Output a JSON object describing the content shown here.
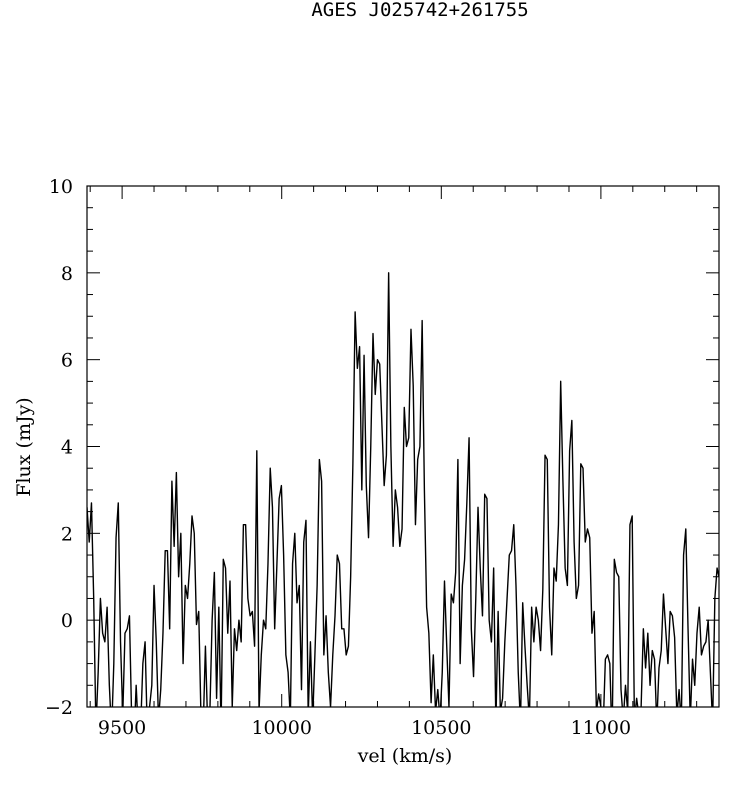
{
  "chart_data": {
    "type": "line",
    "title": "AGES J025742+261755",
    "xlabel": "vel (km/s)",
    "ylabel": "Flux (mJy)",
    "xlim": [
      9390,
      11370
    ],
    "ylim": [
      -2,
      10
    ],
    "x_ticks": [
      9500,
      10000,
      10500,
      11000
    ],
    "y_ticks": [
      -2,
      0,
      2,
      4,
      6,
      8,
      10
    ],
    "grid": false,
    "series": [
      {
        "values": [
          [
            9390,
            2.6
          ],
          [
            9397,
            1.8
          ],
          [
            9404,
            2.7
          ],
          [
            9411,
            0.5
          ],
          [
            9418,
            -2.5
          ],
          [
            9425,
            -1.2
          ],
          [
            9432,
            0.5
          ],
          [
            9439,
            -0.3
          ],
          [
            9446,
            -0.5
          ],
          [
            9453,
            0.3
          ],
          [
            9460,
            -1.5
          ],
          [
            9467,
            -2.6
          ],
          [
            9474,
            -1.0
          ],
          [
            9481,
            1.9
          ],
          [
            9488,
            2.7
          ],
          [
            9495,
            -0.5
          ],
          [
            9502,
            -2.2
          ],
          [
            9509,
            -0.3
          ],
          [
            9516,
            -0.2
          ],
          [
            9523,
            0.1
          ],
          [
            9530,
            -2.3
          ],
          [
            9537,
            -2.8
          ],
          [
            9544,
            -1.5
          ],
          [
            9551,
            -2.6
          ],
          [
            9558,
            -2.5
          ],
          [
            9565,
            -1.0
          ],
          [
            9572,
            -0.5
          ],
          [
            9579,
            -2.6
          ],
          [
            9586,
            -2.0
          ],
          [
            9593,
            -1.5
          ],
          [
            9600,
            0.8
          ],
          [
            9607,
            -0.5
          ],
          [
            9614,
            -2.3
          ],
          [
            9621,
            -1.6
          ],
          [
            9628,
            -0.3
          ],
          [
            9635,
            1.6
          ],
          [
            9642,
            1.6
          ],
          [
            9649,
            -0.2
          ],
          [
            9656,
            3.2
          ],
          [
            9663,
            1.7
          ],
          [
            9670,
            3.4
          ],
          [
            9677,
            1.0
          ],
          [
            9684,
            2.0
          ],
          [
            9691,
            -1.0
          ],
          [
            9698,
            0.8
          ],
          [
            9705,
            0.5
          ],
          [
            9712,
            1.3
          ],
          [
            9719,
            2.4
          ],
          [
            9726,
            2.0
          ],
          [
            9733,
            -0.1
          ],
          [
            9740,
            0.2
          ],
          [
            9747,
            -2.2
          ],
          [
            9754,
            -2.5
          ],
          [
            9761,
            -0.6
          ],
          [
            9768,
            -2.4
          ],
          [
            9775,
            -2.1
          ],
          [
            9782,
            0.0
          ],
          [
            9789,
            1.1
          ],
          [
            9796,
            -1.8
          ],
          [
            9803,
            0.3
          ],
          [
            9810,
            -2.5
          ],
          [
            9817,
            1.4
          ],
          [
            9824,
            1.2
          ],
          [
            9831,
            -0.3
          ],
          [
            9838,
            0.9
          ],
          [
            9845,
            -2.0
          ],
          [
            9852,
            -0.2
          ],
          [
            9859,
            -0.7
          ],
          [
            9866,
            0.0
          ],
          [
            9873,
            -0.5
          ],
          [
            9880,
            2.2
          ],
          [
            9887,
            2.2
          ],
          [
            9894,
            0.5
          ],
          [
            9901,
            0.1
          ],
          [
            9908,
            0.2
          ],
          [
            9915,
            -0.6
          ],
          [
            9922,
            3.9
          ],
          [
            9929,
            -2.1
          ],
          [
            9936,
            -0.8
          ],
          [
            9943,
            0.0
          ],
          [
            9950,
            -0.2
          ],
          [
            9957,
            1.3
          ],
          [
            9964,
            3.5
          ],
          [
            9971,
            2.6
          ],
          [
            9978,
            -0.2
          ],
          [
            9985,
            1.3
          ],
          [
            9992,
            2.8
          ],
          [
            9999,
            3.1
          ],
          [
            10006,
            1.5
          ],
          [
            10013,
            -0.8
          ],
          [
            10020,
            -1.2
          ],
          [
            10027,
            -2.3
          ],
          [
            10034,
            1.3
          ],
          [
            10041,
            2.0
          ],
          [
            10048,
            0.4
          ],
          [
            10055,
            0.8
          ],
          [
            10062,
            -1.6
          ],
          [
            10069,
            1.8
          ],
          [
            10076,
            2.3
          ],
          [
            10083,
            -2.2
          ],
          [
            10090,
            -0.5
          ],
          [
            10097,
            -2.3
          ],
          [
            10104,
            -0.8
          ],
          [
            10111,
            0.8
          ],
          [
            10118,
            3.7
          ],
          [
            10125,
            3.2
          ],
          [
            10132,
            -0.8
          ],
          [
            10139,
            0.1
          ],
          [
            10146,
            -1.2
          ],
          [
            10153,
            -2.0
          ],
          [
            10160,
            -0.8
          ],
          [
            10167,
            0.1
          ],
          [
            10174,
            1.5
          ],
          [
            10181,
            1.3
          ],
          [
            10188,
            -0.2
          ],
          [
            10195,
            -0.2
          ],
          [
            10202,
            -0.8
          ],
          [
            10209,
            -0.6
          ],
          [
            10216,
            1.0
          ],
          [
            10223,
            3.6
          ],
          [
            10230,
            7.1
          ],
          [
            10237,
            5.8
          ],
          [
            10244,
            6.3
          ],
          [
            10251,
            3.0
          ],
          [
            10258,
            6.1
          ],
          [
            10265,
            3.1
          ],
          [
            10272,
            1.9
          ],
          [
            10279,
            4.0
          ],
          [
            10286,
            6.6
          ],
          [
            10293,
            5.2
          ],
          [
            10300,
            6.0
          ],
          [
            10307,
            5.9
          ],
          [
            10314,
            4.5
          ],
          [
            10321,
            3.1
          ],
          [
            10328,
            3.8
          ],
          [
            10335,
            8.0
          ],
          [
            10342,
            4.0
          ],
          [
            10349,
            1.7
          ],
          [
            10356,
            3.0
          ],
          [
            10363,
            2.6
          ],
          [
            10370,
            1.7
          ],
          [
            10377,
            2.1
          ],
          [
            10384,
            4.9
          ],
          [
            10391,
            4.0
          ],
          [
            10398,
            4.2
          ],
          [
            10405,
            6.7
          ],
          [
            10412,
            5.4
          ],
          [
            10419,
            2.2
          ],
          [
            10426,
            3.7
          ],
          [
            10433,
            4.0
          ],
          [
            10440,
            6.9
          ],
          [
            10447,
            3.0
          ],
          [
            10454,
            0.3
          ],
          [
            10461,
            -0.3
          ],
          [
            10468,
            -1.9
          ],
          [
            10475,
            -0.8
          ],
          [
            10482,
            -2.1
          ],
          [
            10489,
            -1.6
          ],
          [
            10496,
            -2.3
          ],
          [
            10503,
            -1.2
          ],
          [
            10510,
            0.9
          ],
          [
            10517,
            -0.6
          ],
          [
            10524,
            -2.0
          ],
          [
            10531,
            0.6
          ],
          [
            10538,
            0.4
          ],
          [
            10545,
            1.1
          ],
          [
            10552,
            3.7
          ],
          [
            10559,
            -1.0
          ],
          [
            10566,
            0.8
          ],
          [
            10573,
            1.4
          ],
          [
            10580,
            2.7
          ],
          [
            10587,
            4.2
          ],
          [
            10594,
            -0.2
          ],
          [
            10601,
            -1.3
          ],
          [
            10608,
            0.5
          ],
          [
            10615,
            2.6
          ],
          [
            10622,
            1.2
          ],
          [
            10629,
            0.1
          ],
          [
            10636,
            2.9
          ],
          [
            10643,
            2.8
          ],
          [
            10650,
            0.0
          ],
          [
            10657,
            -0.5
          ],
          [
            10664,
            1.2
          ],
          [
            10671,
            -2.4
          ],
          [
            10678,
            0.2
          ],
          [
            10685,
            -2.1
          ],
          [
            10692,
            -1.8
          ],
          [
            10699,
            -0.5
          ],
          [
            10706,
            0.5
          ],
          [
            10713,
            1.5
          ],
          [
            10720,
            1.6
          ],
          [
            10727,
            2.2
          ],
          [
            10734,
            0.8
          ],
          [
            10741,
            -1.2
          ],
          [
            10748,
            -2.4
          ],
          [
            10755,
            0.4
          ],
          [
            10762,
            -0.6
          ],
          [
            10769,
            -1.5
          ],
          [
            10776,
            -2.3
          ],
          [
            10783,
            0.3
          ],
          [
            10790,
            -0.5
          ],
          [
            10797,
            0.3
          ],
          [
            10804,
            0.0
          ],
          [
            10811,
            -0.7
          ],
          [
            10818,
            0.7
          ],
          [
            10825,
            3.8
          ],
          [
            10832,
            3.7
          ],
          [
            10839,
            0.3
          ],
          [
            10846,
            -0.8
          ],
          [
            10853,
            1.2
          ],
          [
            10860,
            0.9
          ],
          [
            10867,
            2.2
          ],
          [
            10874,
            5.5
          ],
          [
            10881,
            3.2
          ],
          [
            10888,
            1.2
          ],
          [
            10895,
            0.8
          ],
          [
            10902,
            3.9
          ],
          [
            10909,
            4.6
          ],
          [
            10916,
            1.8
          ],
          [
            10923,
            0.5
          ],
          [
            10930,
            0.8
          ],
          [
            10937,
            3.6
          ],
          [
            10944,
            3.5
          ],
          [
            10951,
            1.8
          ],
          [
            10958,
            2.1
          ],
          [
            10965,
            1.9
          ],
          [
            10972,
            -0.3
          ],
          [
            10979,
            0.2
          ],
          [
            10986,
            -2.1
          ],
          [
            10993,
            -1.7
          ],
          [
            11000,
            -2.0
          ],
          [
            11007,
            -2.5
          ],
          [
            11014,
            -0.9
          ],
          [
            11021,
            -0.8
          ],
          [
            11028,
            -1.0
          ],
          [
            11035,
            -2.8
          ],
          [
            11042,
            1.4
          ],
          [
            11049,
            1.1
          ],
          [
            11056,
            1.0
          ],
          [
            11063,
            -1.6
          ],
          [
            11070,
            -2.3
          ],
          [
            11077,
            -1.5
          ],
          [
            11084,
            -2.1
          ],
          [
            11091,
            2.2
          ],
          [
            11098,
            2.4
          ],
          [
            11105,
            -2.3
          ],
          [
            11112,
            -1.8
          ],
          [
            11119,
            -2.2
          ],
          [
            11126,
            -2.0
          ],
          [
            11133,
            -0.2
          ],
          [
            11140,
            -1.1
          ],
          [
            11147,
            -0.3
          ],
          [
            11154,
            -1.5
          ],
          [
            11161,
            -0.7
          ],
          [
            11168,
            -0.9
          ],
          [
            11175,
            -2.4
          ],
          [
            11182,
            -1.1
          ],
          [
            11189,
            -0.7
          ],
          [
            11196,
            0.6
          ],
          [
            11203,
            -0.2
          ],
          [
            11210,
            -1.0
          ],
          [
            11217,
            0.2
          ],
          [
            11224,
            0.1
          ],
          [
            11231,
            -0.4
          ],
          [
            11238,
            -2.2
          ],
          [
            11245,
            -1.6
          ],
          [
            11252,
            -2.4
          ],
          [
            11259,
            1.5
          ],
          [
            11266,
            2.1
          ],
          [
            11273,
            -0.2
          ],
          [
            11280,
            -2.3
          ],
          [
            11287,
            -0.9
          ],
          [
            11294,
            -1.5
          ],
          [
            11301,
            -0.3
          ],
          [
            11308,
            0.3
          ],
          [
            11315,
            -0.8
          ],
          [
            11322,
            -0.6
          ],
          [
            11329,
            -0.5
          ],
          [
            11336,
            0.0
          ],
          [
            11343,
            -1.2
          ],
          [
            11350,
            -2.4
          ],
          [
            11357,
            0.5
          ],
          [
            11364,
            1.2
          ],
          [
            11370,
            1.0
          ]
        ]
      }
    ]
  }
}
